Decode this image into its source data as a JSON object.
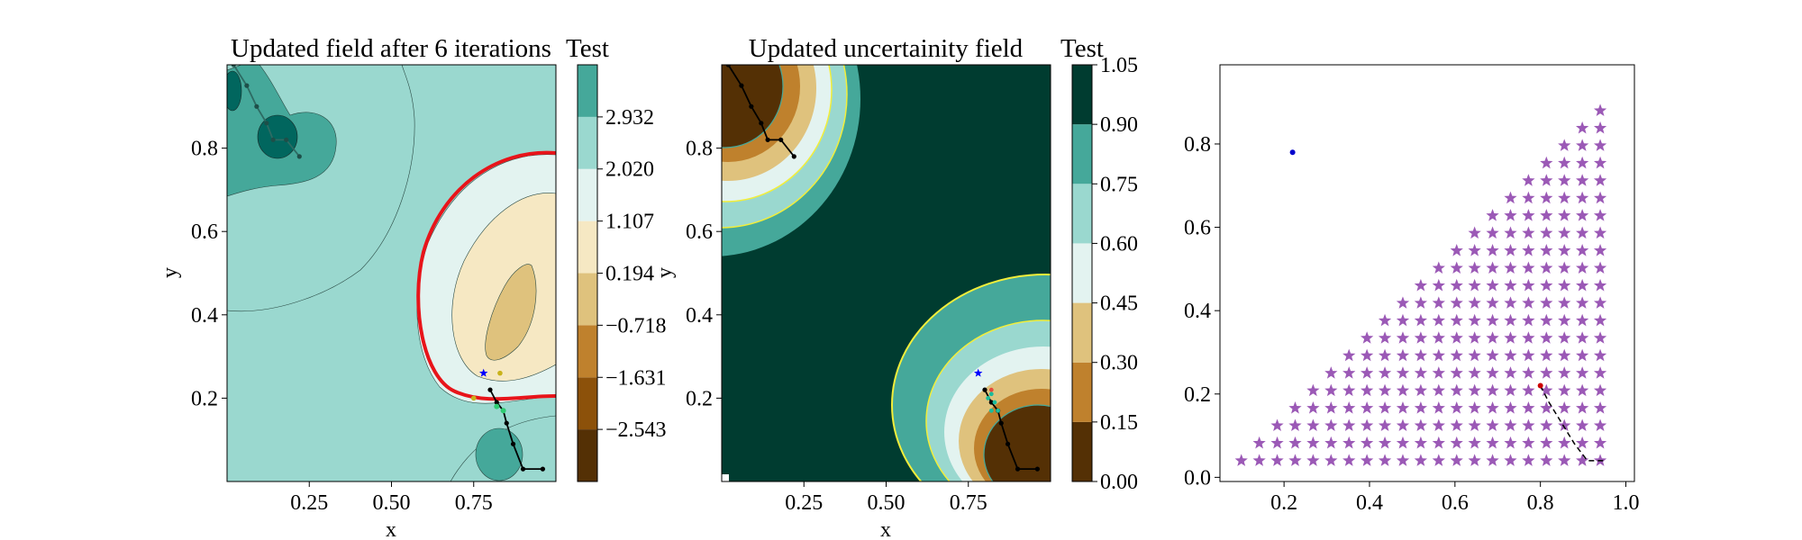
{
  "chart_data": [
    {
      "type": "contour",
      "title": "Updated field after 6 iterations",
      "xlabel": "x",
      "ylabel": "y",
      "xlim": [
        0.0,
        1.0
      ],
      "ylim": [
        0.0,
        1.0
      ],
      "xticks": [
        0.25,
        0.5,
        0.75
      ],
      "xtick_labels": [
        "0.25",
        "0.50",
        "0.75"
      ],
      "yticks": [
        0.2,
        0.4,
        0.6,
        0.8
      ],
      "ytick_labels": [
        "0.2",
        "0.4",
        "0.6",
        "0.8"
      ],
      "colorbar": {
        "title": "Test",
        "levels": [
          -3.456,
          -2.543,
          -1.631,
          -0.718,
          0.194,
          1.107,
          2.02,
          2.932,
          3.845
        ],
        "tick_values": [
          -2.543,
          -1.631,
          -0.718,
          0.194,
          1.107,
          2.02,
          2.932
        ],
        "tick_labels": [
          "−2.543",
          "−1.631",
          "−0.718",
          "0.194",
          "1.107",
          "2.020",
          "2.932"
        ],
        "colors": [
          "#543005",
          "#8c510a",
          "#bf812d",
          "#dfc27d",
          "#f6e8c3",
          "#e3f3f0",
          "#9ad8cf",
          "#45a89a",
          "#01665e",
          "#003c30"
        ]
      },
      "zero_contour_color": "#e8141a",
      "path_visited": [
        [
          0.02,
          1.0
        ],
        [
          0.06,
          0.95
        ],
        [
          0.09,
          0.9
        ],
        [
          0.12,
          0.86
        ],
        [
          0.14,
          0.82
        ],
        [
          0.18,
          0.82
        ],
        [
          0.22,
          0.78
        ]
      ],
      "path_lower": [
        [
          0.8,
          0.22
        ],
        [
          0.82,
          0.19
        ],
        [
          0.84,
          0.17
        ],
        [
          0.85,
          0.14
        ],
        [
          0.87,
          0.09
        ],
        [
          0.9,
          0.03
        ],
        [
          0.96,
          0.03
        ]
      ],
      "marker_star": [
        0.78,
        0.26
      ],
      "markers_yellow": [
        [
          0.83,
          0.26
        ],
        [
          0.75,
          0.2
        ]
      ],
      "markers_green": [
        [
          0.82,
          0.18
        ],
        [
          0.84,
          0.17
        ]
      ]
    },
    {
      "type": "contour",
      "title": "Updated uncertainity field",
      "xlabel": "x",
      "ylabel": "y",
      "xlim": [
        0.0,
        1.0
      ],
      "ylim": [
        0.0,
        1.0
      ],
      "xticks": [
        0.25,
        0.5,
        0.75
      ],
      "xtick_labels": [
        "0.25",
        "0.50",
        "0.75"
      ],
      "yticks": [
        0.2,
        0.4,
        0.6,
        0.8
      ],
      "ytick_labels": [
        "0.2",
        "0.4",
        "0.6",
        "0.8"
      ],
      "colorbar": {
        "title": "Test",
        "levels": [
          0.0,
          0.15,
          0.3,
          0.45,
          0.6,
          0.75,
          0.9,
          1.05
        ],
        "tick_labels": [
          "0.00",
          "0.15",
          "0.30",
          "0.45",
          "0.60",
          "0.75",
          "0.90",
          "1.05"
        ],
        "colors": [
          "#543005",
          "#bf812d",
          "#dfc27d",
          "#e3f3f0",
          "#9ad8cf",
          "#45a89a",
          "#003c30"
        ]
      },
      "highlight_contour_color": "#f2ee3a",
      "path_visited": [
        [
          0.02,
          1.0
        ],
        [
          0.06,
          0.95
        ],
        [
          0.09,
          0.9
        ],
        [
          0.12,
          0.86
        ],
        [
          0.14,
          0.82
        ],
        [
          0.18,
          0.82
        ],
        [
          0.22,
          0.78
        ]
      ],
      "path_lower": [
        [
          0.8,
          0.22
        ],
        [
          0.82,
          0.19
        ],
        [
          0.84,
          0.17
        ],
        [
          0.85,
          0.14
        ],
        [
          0.87,
          0.09
        ],
        [
          0.9,
          0.03
        ],
        [
          0.96,
          0.03
        ]
      ],
      "marker_star": [
        0.78,
        0.26
      ]
    },
    {
      "type": "scatter",
      "title": "",
      "xlim": [
        0.05,
        1.02
      ],
      "ylim": [
        -0.01,
        0.99
      ],
      "xticks": [
        0.2,
        0.4,
        0.6,
        0.8,
        1.0
      ],
      "xtick_labels": [
        "0.2",
        "0.4",
        "0.6",
        "0.8",
        "1.0"
      ],
      "yticks": [
        0.0,
        0.2,
        0.4,
        0.6,
        0.8
      ],
      "ytick_labels": [
        "0.0",
        "0.2",
        "0.4",
        "0.6",
        "0.8"
      ],
      "grid": {
        "x_start": 0.1,
        "y_start": 0.04,
        "spacing": 0.042
      },
      "star_color": "#9b59b6",
      "blue_point": [
        0.22,
        0.78
      ],
      "red_point": [
        0.8,
        0.22
      ],
      "dashed_path": [
        [
          0.8,
          0.22
        ],
        [
          0.82,
          0.18
        ],
        [
          0.85,
          0.13
        ],
        [
          0.88,
          0.08
        ],
        [
          0.91,
          0.04
        ],
        [
          0.95,
          0.04
        ]
      ]
    }
  ]
}
